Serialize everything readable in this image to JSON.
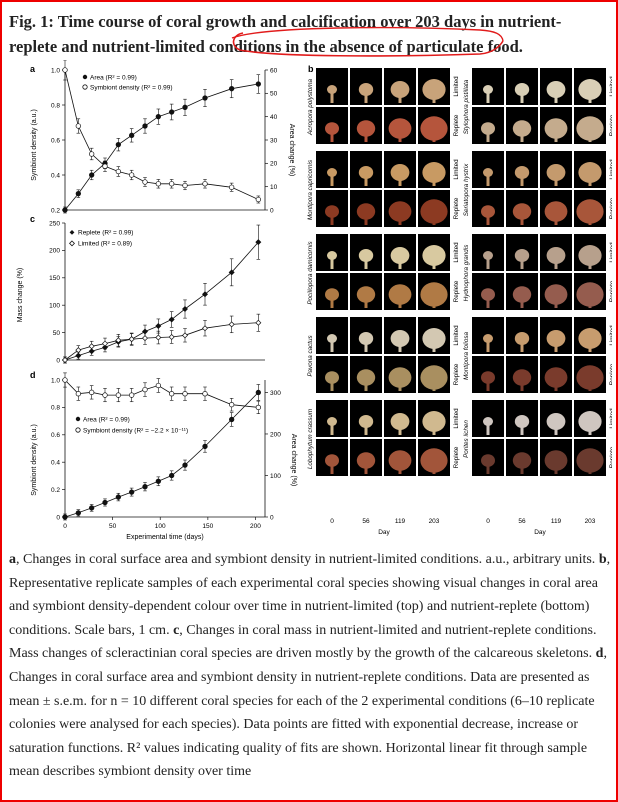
{
  "figure_title": "Fig. 1: Time course of coral growth and calcification over 203 days in nutrient-replete and nutrient-limited conditions in the absence of particulate food.",
  "colors": {
    "annotation": "#e11b1b",
    "marker": "#111111",
    "photo_bg": "#000000"
  },
  "panel_labels": {
    "a": "a",
    "b": "b",
    "c": "c",
    "d": "d"
  },
  "panel_a": {
    "ylabel_left": "Symbiont density (a.u.)",
    "ylabel_right": "Area change (%)",
    "legend": [
      "Area (R² = 0.99)",
      "Symbiont density (R² = 0.99)"
    ],
    "left_ticks": [
      "0.2",
      "0.4",
      "0.6",
      "0.8",
      "1.0"
    ],
    "right_ticks": [
      "0",
      "10",
      "20",
      "30",
      "40",
      "50",
      "60"
    ]
  },
  "panel_c": {
    "ylabel": "Mass change (%)",
    "legend": [
      "Replete (R² = 0.99)",
      "Limited (R² = 0.89)"
    ],
    "ticks": [
      "0",
      "50",
      "100",
      "150",
      "200",
      "250"
    ]
  },
  "panel_d": {
    "ylabel_left": "Symbiont density (a.u.)",
    "ylabel_right": "Area change (%)",
    "legend": [
      "Area (R² = 0.99)",
      "Symbiont density (R² = −2.2 × 10⁻¹¹)"
    ],
    "left_ticks": [
      "0",
      "0.2",
      "0.4",
      "0.6",
      "0.8",
      "1.0"
    ],
    "right_ticks": [
      "0",
      "100",
      "200",
      "300"
    ],
    "xlabel": "Experimental time (days)",
    "x_ticks": [
      "0",
      "50",
      "100",
      "150",
      "200"
    ]
  },
  "chart_data": [
    {
      "type": "scatter",
      "panel": "a",
      "x": [
        0,
        14,
        28,
        42,
        56,
        70,
        84,
        98,
        112,
        126,
        147,
        175,
        203
      ],
      "series": [
        {
          "name": "Area",
          "axis": "right",
          "values": [
            0,
            7,
            15,
            20,
            28,
            32,
            36,
            40,
            42,
            44,
            48,
            52,
            54
          ]
        },
        {
          "name": "Symbiont density",
          "axis": "left",
          "values": [
            1.0,
            0.68,
            0.52,
            0.45,
            0.42,
            0.4,
            0.36,
            0.35,
            0.35,
            0.34,
            0.35,
            0.33,
            0.26
          ]
        }
      ],
      "ylim_left": [
        0.2,
        1.0
      ],
      "ylim_right": [
        0,
        60
      ]
    },
    {
      "type": "scatter",
      "panel": "c",
      "x": [
        0,
        14,
        28,
        42,
        56,
        70,
        84,
        98,
        112,
        126,
        147,
        175,
        203
      ],
      "series": [
        {
          "name": "Replete",
          "values": [
            0,
            8,
            16,
            23,
            33,
            38,
            52,
            62,
            74,
            93,
            120,
            160,
            215
          ]
        },
        {
          "name": "Limited",
          "values": [
            0,
            18,
            25,
            30,
            36,
            38,
            40,
            41,
            42,
            45,
            58,
            65,
            68
          ]
        }
      ],
      "ylim": [
        0,
        250
      ]
    },
    {
      "type": "scatter",
      "panel": "d",
      "x": [
        0,
        14,
        28,
        42,
        56,
        70,
        84,
        98,
        112,
        126,
        147,
        175,
        203
      ],
      "series": [
        {
          "name": "Area",
          "axis": "right",
          "values": [
            0,
            10,
            22,
            35,
            48,
            60,
            73,
            86,
            100,
            125,
            170,
            235,
            300
          ]
        },
        {
          "name": "Symbiont density",
          "axis": "left",
          "values": [
            1.0,
            0.9,
            0.91,
            0.89,
            0.89,
            0.89,
            0.93,
            0.96,
            0.9,
            0.9,
            0.9,
            0.82,
            0.8
          ]
        }
      ],
      "ylim_left": [
        0,
        1.0
      ],
      "ylim_right": [
        0,
        330
      ],
      "xlabel": "Experimental time (days)",
      "xlim": [
        0,
        210
      ]
    }
  ],
  "panel_b": {
    "left_column": {
      "species": [
        "Acropora polystoma",
        "Montipora capricornis",
        "Pocillopora damicornis",
        "Pavona cactus",
        "Lobophytum crassum"
      ],
      "row_labels": [
        "Limited",
        "Replete"
      ]
    },
    "right_column": {
      "species": [
        "Stylophora pistillata",
        "Seriatopora hystrix",
        "Hydnophora grandis",
        "Montipora foliosa",
        "Porites lichen"
      ],
      "row_labels": [
        "Limited",
        "Replete"
      ]
    },
    "x_ticks": [
      "0",
      "56",
      "119",
      "203"
    ],
    "xlabel": "Day"
  },
  "caption": {
    "a_label": "a",
    "a_text": ", Changes in coral surface area and symbiont density in nutrient-limited conditions. a.u., arbitrary units. ",
    "b_label": "b",
    "b_text": ", Representative replicate samples of each experimental coral species showing visual changes in coral area and symbiont density-dependent colour over time in nutrient-limited (top) and nutrient-replete (bottom) conditions. Scale bars, 1 cm. ",
    "c_label": "c",
    "c_text": ", Changes in coral mass in nutrient-limited and nutrient-replete conditions. Mass changes of scleractinian coral species are driven mostly by the growth of the calcareous skeletons. ",
    "d_label": "d",
    "d_text": ", Changes in coral surface area and symbiont density in nutrient-replete conditions. Data are presented as mean ± s.e.m. for n = 10 different coral species for each of the 2 experimental conditions (6–10 replicate colonies were analysed for each species). Data points are fitted with exponential decrease, increase or saturation functions. R² values indicating quality of fits are shown. Horizontal linear fit through sample mean describes symbiont density over time"
  }
}
